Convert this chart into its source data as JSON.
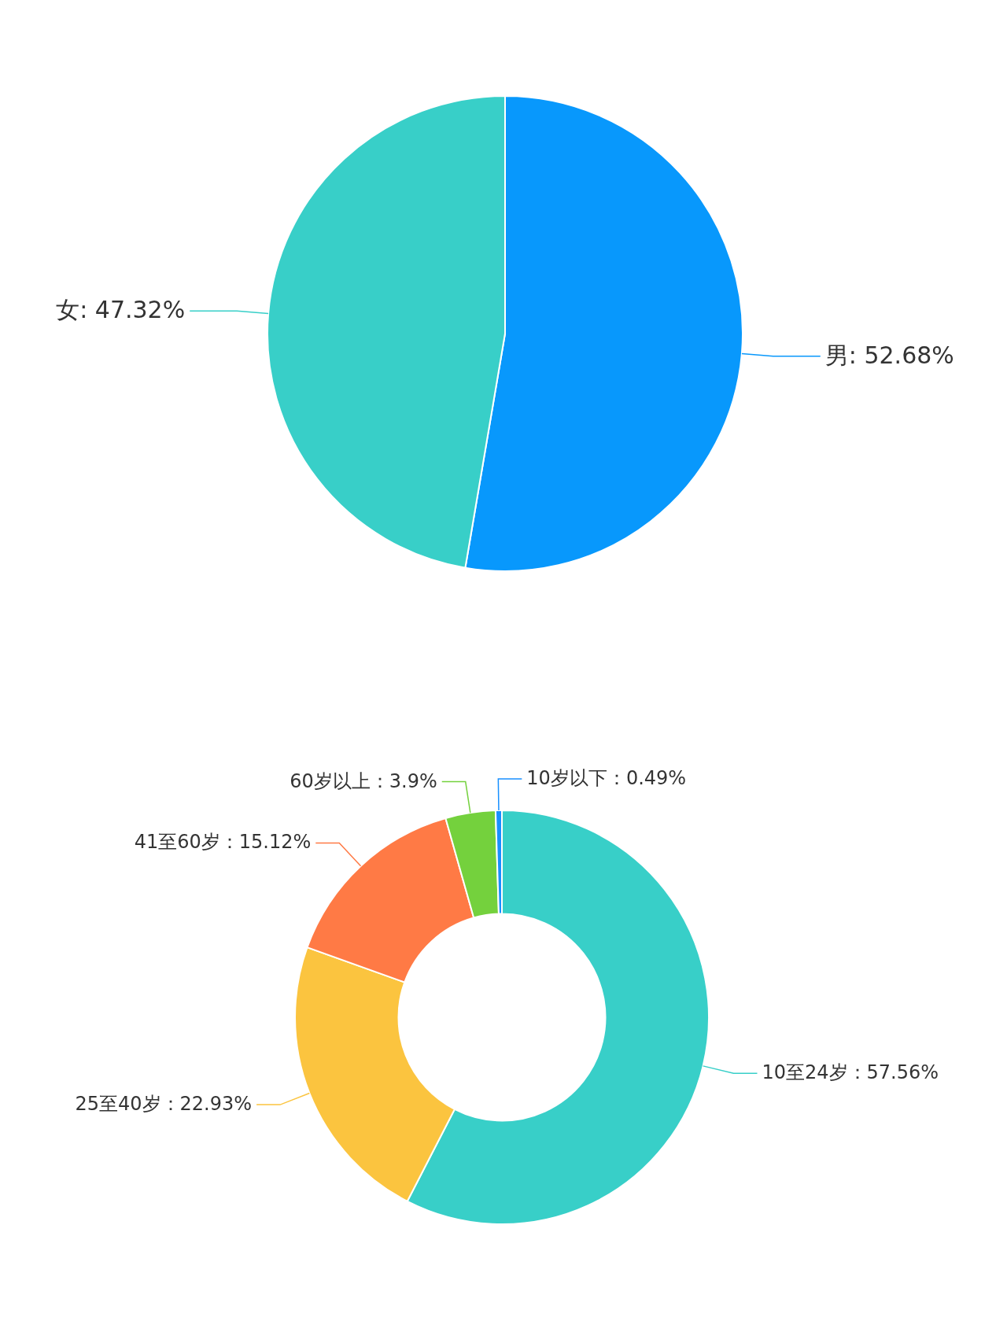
{
  "chart_data": [
    {
      "type": "pie",
      "categories": [
        "男",
        "女"
      ],
      "values": [
        52.68,
        47.32
      ],
      "colors": [
        "#0898fc",
        "#38cfc8"
      ],
      "value_labels": [
        ": 52.68%",
        ": 47.32%"
      ]
    },
    {
      "type": "donut",
      "categories": [
        "10至24岁",
        "25至40岁",
        "41至60岁",
        "60岁以上",
        "10岁以下"
      ],
      "values": [
        57.56,
        22.93,
        15.12,
        3.9,
        0.49
      ],
      "colors": [
        "#38cfc8",
        "#fbc43f",
        "#ff7a45",
        "#74d13d",
        "#1890ff"
      ],
      "value_labels": [
        "：57.56%",
        "：22.93%",
        "：15.12%",
        "：3.9%",
        "：0.49%"
      ]
    }
  ]
}
